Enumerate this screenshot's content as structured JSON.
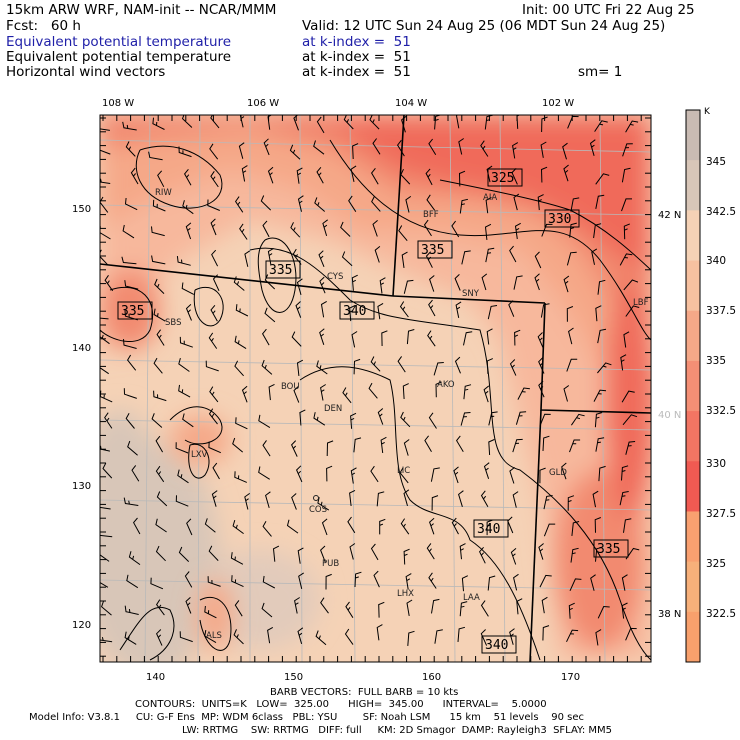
{
  "header": {
    "model": "15km ARW WRF, NAM-init -- NCAR/MMM",
    "init": "Init: 00 UTC Fri 22 Aug 25",
    "fcst": "Fcst:   60 h",
    "valid": "Valid: 12 UTC Sun 24 Aug 25 (06 MDT Sun 24 Aug 25)",
    "field1_name": "Equivalent potential temperature",
    "field1_level": "at k-index =  51",
    "field2_name": "Equivalent potential temperature",
    "field2_level": "at k-index =  51",
    "field3_name": "Horizontal wind vectors",
    "field3_level": "at k-index =  51",
    "smoothing": "sm= 1"
  },
  "colors": {
    "highlight_text": "#1f1fa8",
    "warm_min": "#f9a070",
    "cold_max": "#c9bbb3"
  },
  "map": {
    "top_labels": [
      "108 W",
      "106 W",
      "104 W",
      "102 W"
    ],
    "left_labels": [
      "150",
      "140",
      "130",
      "120"
    ],
    "bottom_labels": [
      "140",
      "150",
      "160",
      "170"
    ],
    "right_labels": [
      "42 N",
      "40 N",
      "38 N"
    ],
    "stations": [
      "RIW",
      "BFF",
      "AIA",
      "CYS",
      "SNY",
      "LBF",
      "SBS",
      "BOU",
      "AKO",
      "DEN",
      "LXV",
      "LIC",
      "GLD",
      "COS",
      "PUB",
      "LHX",
      "LAA",
      "ALS"
    ],
    "contour_labels": [
      "325",
      "330",
      "335",
      "335",
      "335",
      "340",
      "340",
      "335",
      "340"
    ]
  },
  "colorbar": {
    "unit": "K",
    "labels": [
      "345",
      "342.5",
      "340",
      "337.5",
      "335",
      "332.5",
      "330",
      "327.5",
      "325",
      "322.5"
    ],
    "colors": [
      "#c9bbb3",
      "#d8c6b8",
      "#f5d2b6",
      "#f7c1a0",
      "#f5a888",
      "#f48f75",
      "#f27563",
      "#f05a52",
      "#f9a070",
      "#f7b07a",
      "#f8a06c"
    ]
  },
  "footer": {
    "line1": "BARB VECTORS:  FULL BARB = 10 kts",
    "line2": "CONTOURS:  UNITS=K   LOW=  325.00      HIGH=  345.00      INTERVAL=    5.0000",
    "line3": "Model Info: V3.8.1     CU: G-F Ens  MP: WDM 6class   PBL: YSU        SF: Noah LSM      15 km    51 levels    90 sec",
    "line4": "LW: RRTMG    SW: RRTMG   DIFF: full     KM: 2D Smagor  DAMP: Rayleigh3  SFLAY: MM5"
  }
}
